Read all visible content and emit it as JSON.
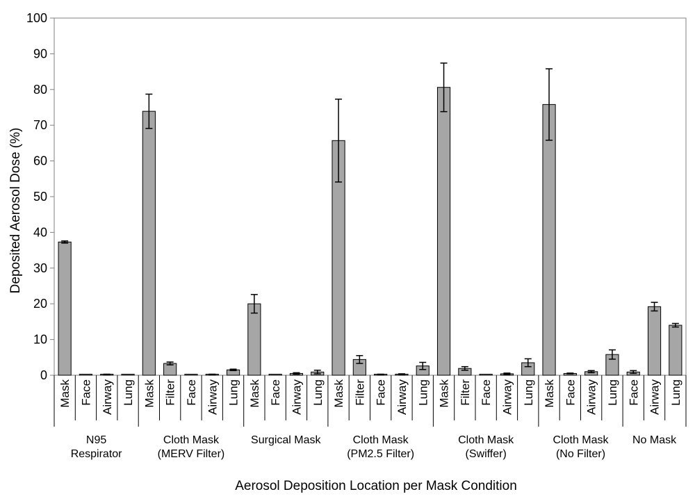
{
  "chart_data": {
    "type": "bar",
    "title": "",
    "xlabel": "Aerosol Deposition Location per Mask Condition",
    "ylabel": "Deposited Aerosol Dose (%)",
    "ylim": [
      0,
      100
    ],
    "yticks": [
      0,
      10,
      20,
      30,
      40,
      50,
      60,
      70,
      80,
      90,
      100
    ],
    "grid": false,
    "legend": "none",
    "bar_color": "#a6a6a6",
    "groups": [
      {
        "label": [
          "N95",
          "Respirator"
        ],
        "bars": [
          {
            "category": "Mask",
            "value": 37.3,
            "error": 0.3
          },
          {
            "category": "Face",
            "value": 0.1,
            "error": 0.0
          },
          {
            "category": "Airway",
            "value": 0.2,
            "error": 0.1
          },
          {
            "category": "Lung",
            "value": 0.1,
            "error": 0.0
          }
        ]
      },
      {
        "label": [
          "Cloth Mask",
          "(MERV Filter)"
        ],
        "bars": [
          {
            "category": "Mask",
            "value": 73.9,
            "error": 4.8
          },
          {
            "category": "Filter",
            "value": 3.3,
            "error": 0.4
          },
          {
            "category": "Face",
            "value": 0.1,
            "error": 0.0
          },
          {
            "category": "Airway",
            "value": 0.2,
            "error": 0.1
          },
          {
            "category": "Lung",
            "value": 1.5,
            "error": 0.2
          }
        ]
      },
      {
        "label": [
          "Surgical Mask"
        ],
        "bars": [
          {
            "category": "Mask",
            "value": 20.0,
            "error": 2.6
          },
          {
            "category": "Face",
            "value": 0.1,
            "error": 0.0
          },
          {
            "category": "Airway",
            "value": 0.5,
            "error": 0.2
          },
          {
            "category": "Lung",
            "value": 0.9,
            "error": 0.5
          }
        ]
      },
      {
        "label": [
          "Cloth Mask",
          "(PM2.5 Filter)"
        ],
        "bars": [
          {
            "category": "Mask",
            "value": 65.7,
            "error": 11.6
          },
          {
            "category": "Filter",
            "value": 4.4,
            "error": 1.1
          },
          {
            "category": "Face",
            "value": 0.2,
            "error": 0.1
          },
          {
            "category": "Airway",
            "value": 0.3,
            "error": 0.1
          },
          {
            "category": "Lung",
            "value": 2.6,
            "error": 1.0
          }
        ]
      },
      {
        "label": [
          "Cloth Mask",
          "(Swiffer)"
        ],
        "bars": [
          {
            "category": "Mask",
            "value": 80.6,
            "error": 6.8
          },
          {
            "category": "Filter",
            "value": 1.9,
            "error": 0.5
          },
          {
            "category": "Face",
            "value": 0.1,
            "error": 0.0
          },
          {
            "category": "Airway",
            "value": 0.4,
            "error": 0.2
          },
          {
            "category": "Lung",
            "value": 3.5,
            "error": 1.1
          }
        ]
      },
      {
        "label": [
          "Cloth Mask",
          "(No Filter)"
        ],
        "bars": [
          {
            "category": "Mask",
            "value": 75.8,
            "error": 10.0
          },
          {
            "category": "Face",
            "value": 0.5,
            "error": 0.1
          },
          {
            "category": "Airway",
            "value": 1.0,
            "error": 0.3
          },
          {
            "category": "Lung",
            "value": 5.8,
            "error": 1.3
          }
        ]
      },
      {
        "label": [
          "No Mask"
        ],
        "bars": [
          {
            "category": "Face",
            "value": 0.9,
            "error": 0.4
          },
          {
            "category": "Airway",
            "value": 19.2,
            "error": 1.2
          },
          {
            "category": "Lung",
            "value": 14.0,
            "error": 0.5
          }
        ]
      }
    ]
  }
}
